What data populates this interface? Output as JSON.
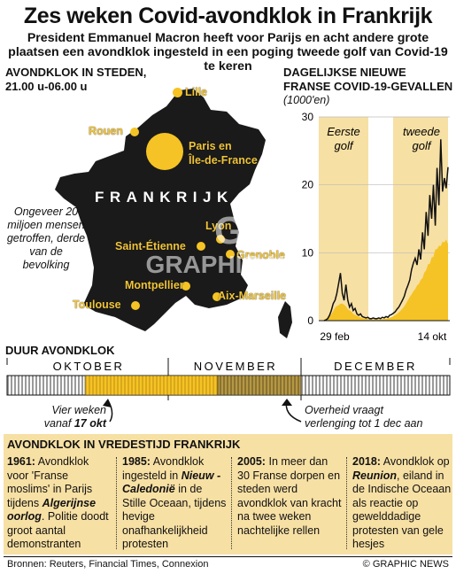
{
  "title": "Zes weken Covid-avondklok in Frankrijk",
  "subtitle": "President Emmanuel Macron heeft voor Parijs en acht andere grote plaatsen een avondklok ingesteld in een poging tweede golf van Covid-19 te keren",
  "map": {
    "header_line1": "Avondklok in steden,",
    "header_line2": "21.00 u-06.00 u",
    "country_label": "FRANKRIJK",
    "population_note": "Ongeveer 20 miljoen mensen getroffen, derde van de bevolking",
    "cities": [
      {
        "name": "Lille"
      },
      {
        "name": "Rouen"
      },
      {
        "name": "Paris en"
      },
      {
        "name": "Île-de-France"
      },
      {
        "name": "Lyon"
      },
      {
        "name": "Saint-Étienne"
      },
      {
        "name": "Grenoble"
      },
      {
        "name": "Montpellier"
      },
      {
        "name": "Aix-Marseille"
      },
      {
        "name": "Toulouse"
      }
    ],
    "colors": {
      "land": "#1a1a1a",
      "accent": "#f5c325"
    }
  },
  "chart": {
    "header_line1": "Dagelijkse nieuwe",
    "header_line2": "Franse Covid-19-gevallen",
    "unit": "(1000'en)",
    "wave1_label": [
      "Eerste",
      "golf"
    ],
    "wave2_label": [
      "tweede",
      "golf"
    ]
  },
  "chart_data": {
    "type": "area",
    "ylabel": "(1000'en)",
    "ylim": [
      0,
      30
    ],
    "yticks": [
      "0",
      "10",
      "20",
      "30"
    ],
    "xtick_labels": [
      "29 feb",
      "14 okt"
    ],
    "shaded_periods": [
      "Eerste golf",
      "tweede golf"
    ],
    "series": [
      {
        "values": [
          0,
          0.1,
          0.3,
          0.8,
          1.5,
          2.5,
          3,
          4,
          5.5,
          7,
          4,
          3,
          5.3,
          3,
          2,
          2.5,
          1.5,
          1.8,
          1,
          0.8,
          1,
          0.6,
          0.5,
          0.4,
          0.5,
          0.3,
          0.3,
          0.4,
          0.3,
          0.3,
          0.4,
          0.3,
          0.5,
          0.4,
          0.6,
          0.5,
          0.8,
          0.9,
          1.1,
          1.3,
          1.7,
          2,
          2.5,
          3,
          3.6,
          4.5,
          5.2,
          6,
          7.5,
          8.5,
          9.2,
          8.2,
          10.5,
          9,
          13,
          10.5,
          16,
          12.5,
          18.5,
          15,
          20,
          14,
          22.5,
          17,
          26.7,
          19,
          21,
          19.5,
          22.6
        ]
      }
    ],
    "colors": {
      "wave_band": "#f7e0a4",
      "area": "#f5c325",
      "line": "#111111"
    }
  },
  "timeline": {
    "header": "Duur avondklok",
    "months": [
      "OKTOBER",
      "NOVEMBER",
      "DECEMBER"
    ],
    "start_note_line1": "Vier weken",
    "start_note_prefix": "vanaf",
    "start_note_date": "17 okt",
    "extend_note_line1": "Overheid vraagt",
    "extend_note_line2": "verlenging tot 1 dec aan"
  },
  "history": {
    "header": "Avondklok in vredestijd Frankrijk",
    "items": [
      {
        "year": "1961:",
        "lines": [
          "Avondklok",
          "voor 'Franse",
          "moslims' in Parijs",
          "tijdens"
        ],
        "event": "Algerijnse oorlog",
        "rest": ". Politie doodt groot aantal demonstranten"
      },
      {
        "year": "1985:",
        "lines": [
          "Avondklok ingesteld in"
        ],
        "event": "Nieuw -Caledonië",
        "rest": " in de Stille Oceaan, tijdens hevige onafhankelijkheid protesten"
      },
      {
        "year": "2005:",
        "lines": [
          "In meer dan 30 Franse dorpen en steden werd avondklok van kracht na twee weken nachtelijke rellen"
        ],
        "event": "",
        "rest": ""
      },
      {
        "year": "2018:",
        "lines": [
          "Avondklok op"
        ],
        "event": "Reunion",
        "rest": ", eiland in de Indische Oceaan als reactie op gewelddadige protesten van gele hesjes"
      }
    ]
  },
  "footer": {
    "sources": "Bronnen: Reuters, Financial Times, Connexion",
    "credit": "© GRAPHIC NEWS"
  },
  "watermark": {
    "line1": "GN",
    "line2": "GRAPHIC NEWS"
  }
}
